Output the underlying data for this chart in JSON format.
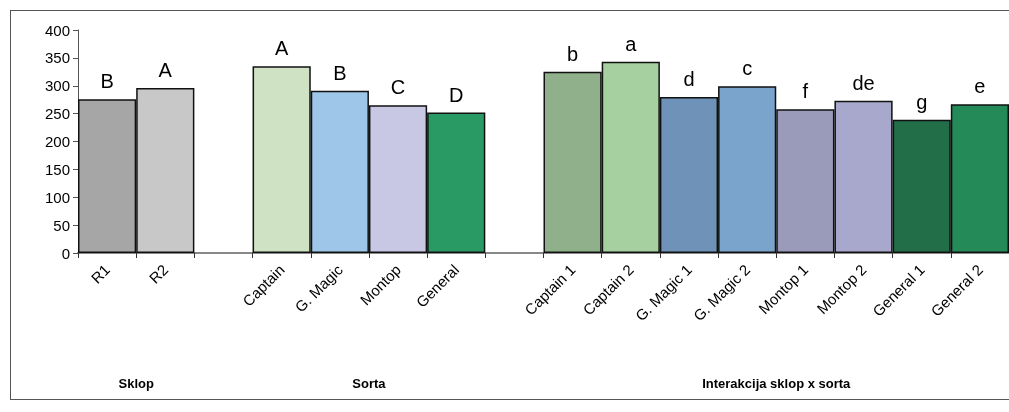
{
  "chart_data": {
    "type": "bar",
    "categories": [
      "R1",
      "R2",
      null,
      "Captain",
      "G. Magic",
      "Montop",
      "General",
      null,
      "Captain 1",
      "Captain 2",
      "G. Magic 1",
      "G. Magic 2",
      "Montop 1",
      "Montop 2",
      "General 1",
      "General 2"
    ],
    "values": [
      276,
      296,
      null,
      335,
      291,
      265,
      252,
      null,
      325,
      343,
      280,
      299,
      258,
      273,
      239,
      267
    ],
    "value_labels": [
      "B",
      "A",
      null,
      "A",
      "B",
      "C",
      "D",
      null,
      "b",
      "a",
      "d",
      "c",
      "f",
      "de",
      "g",
      "e"
    ],
    "colors": [
      "#a6a6a6",
      "#c8c8c8",
      null,
      "#cfe3c4",
      "#9dc6e8",
      "#c8c8e4",
      "#2a9a64",
      null,
      "#8fb08a",
      "#a6d0a0",
      "#6f93b8",
      "#7aa4cc",
      "#9a9abb",
      "#a8a8cc",
      "#226e48",
      "#238a58"
    ],
    "ylim": [
      0,
      400
    ],
    "yticks": [
      0,
      50,
      100,
      150,
      200,
      250,
      300,
      350,
      400
    ],
    "annotations": [
      "Sklop",
      "Sorta",
      "Interakcija sklop x sorta"
    ]
  }
}
